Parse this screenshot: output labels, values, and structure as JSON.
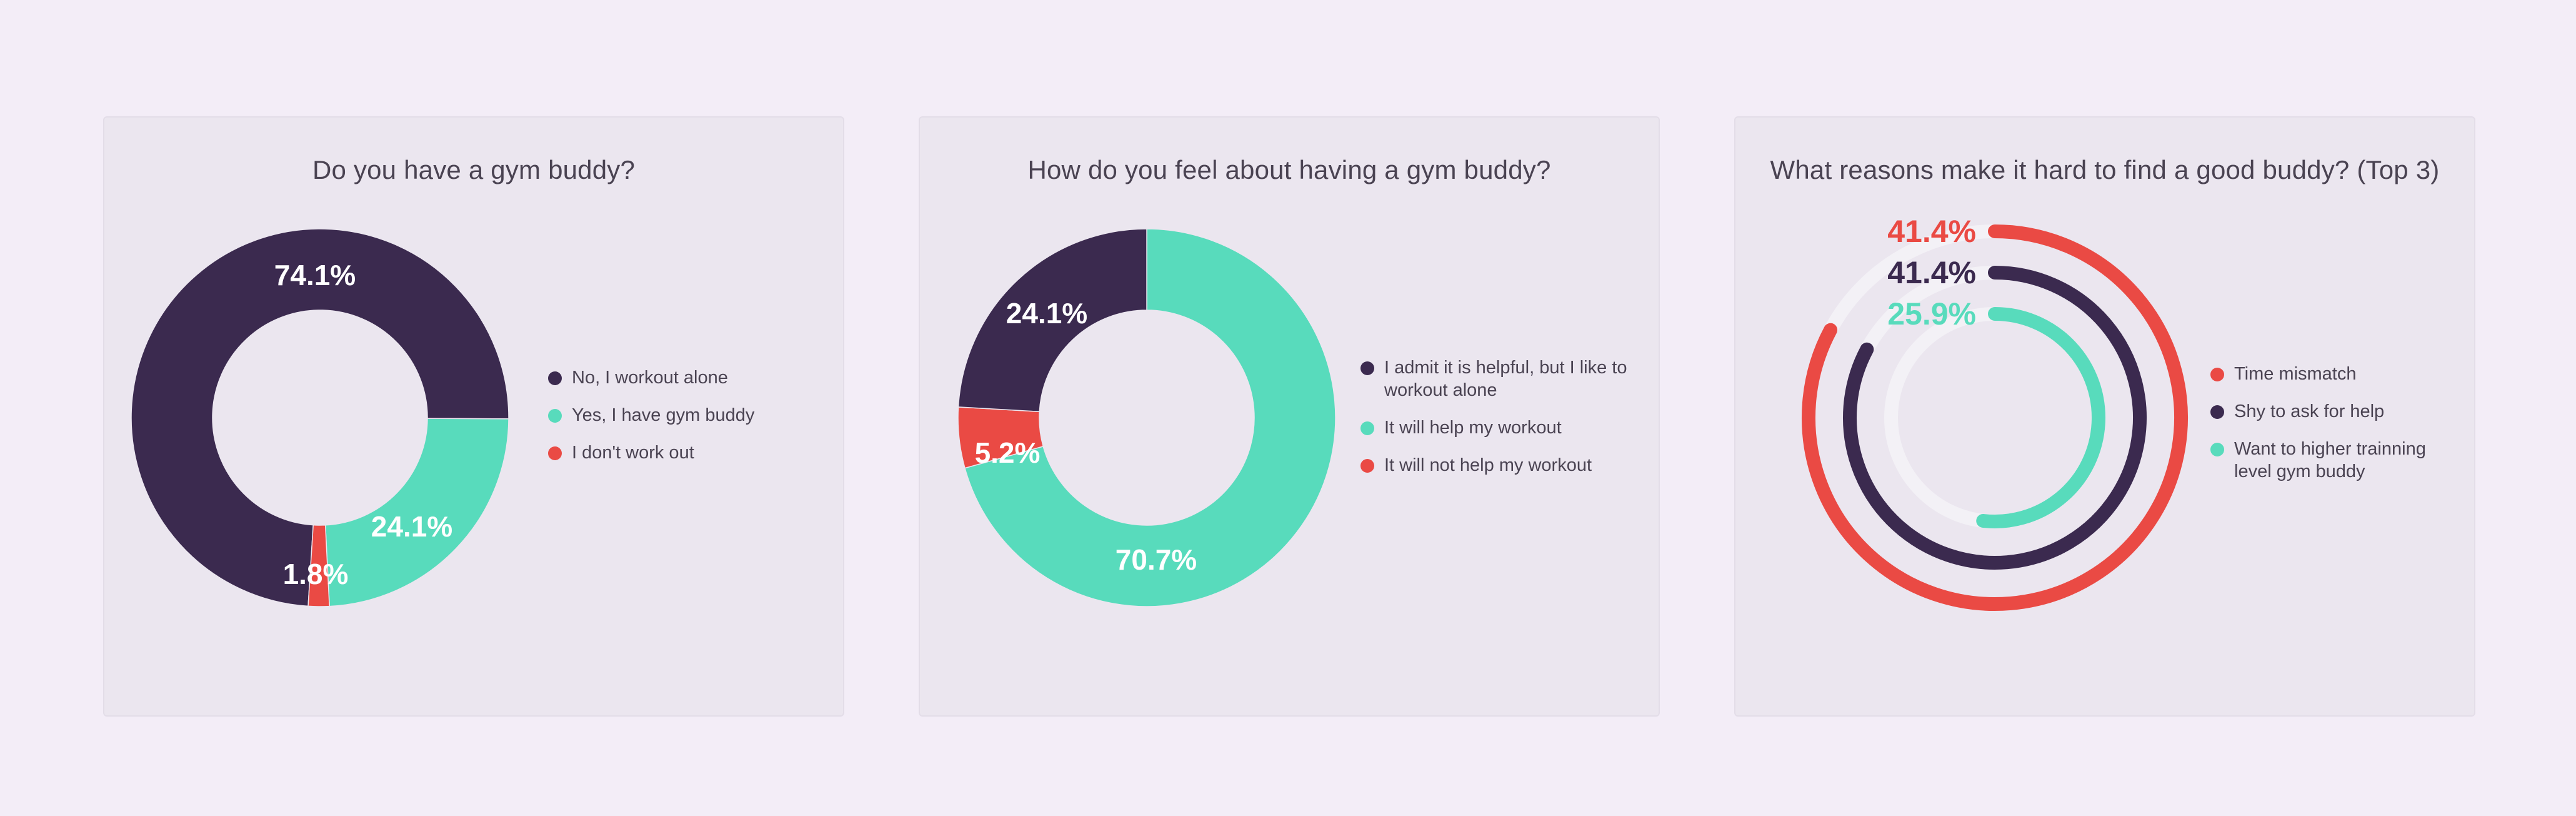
{
  "colors": {
    "dark": "#3b2a4f",
    "teal": "#58dbbc",
    "red": "#ea4a44",
    "track": "#f3f1f6"
  },
  "chart_data": [
    {
      "type": "pie",
      "title": "Do you have a gym buddy?",
      "labels": [
        "No, I workout alone",
        "Yes, I have gym buddy",
        "I don't work out"
      ],
      "values": [
        74.1,
        24.1,
        1.8
      ],
      "value_labels": [
        "74.1%",
        "24.1%",
        "1.8%"
      ],
      "colors": [
        "#3b2a4f",
        "#58dbbc",
        "#ea4a44"
      ],
      "legend": "right"
    },
    {
      "type": "pie",
      "title": "How do you feel about having a gym buddy?",
      "labels": [
        "I admit it is helpful, but I like to workout alone",
        "It will help my workout",
        "It will not help my workout"
      ],
      "values": [
        24.1,
        70.7,
        5.2
      ],
      "value_labels": [
        "24.1%",
        "70.7%",
        "5.2%"
      ],
      "colors": [
        "#3b2a4f",
        "#58dbbc",
        "#ea4a44"
      ],
      "legend": "right"
    },
    {
      "type": "bar",
      "subtype": "radial",
      "title": "What reasons make it hard to find a good buddy? (Top 3)",
      "categories": [
        "Time mismatch",
        "Shy to ask for help",
        "Want to higher trainning level gym buddy"
      ],
      "values": [
        41.4,
        41.4,
        25.9
      ],
      "value_labels": [
        "41.4%",
        "41.4%",
        "25.9%"
      ],
      "colors": [
        "#ea4a44",
        "#3b2a4f",
        "#58dbbc"
      ],
      "legend": "right"
    }
  ]
}
